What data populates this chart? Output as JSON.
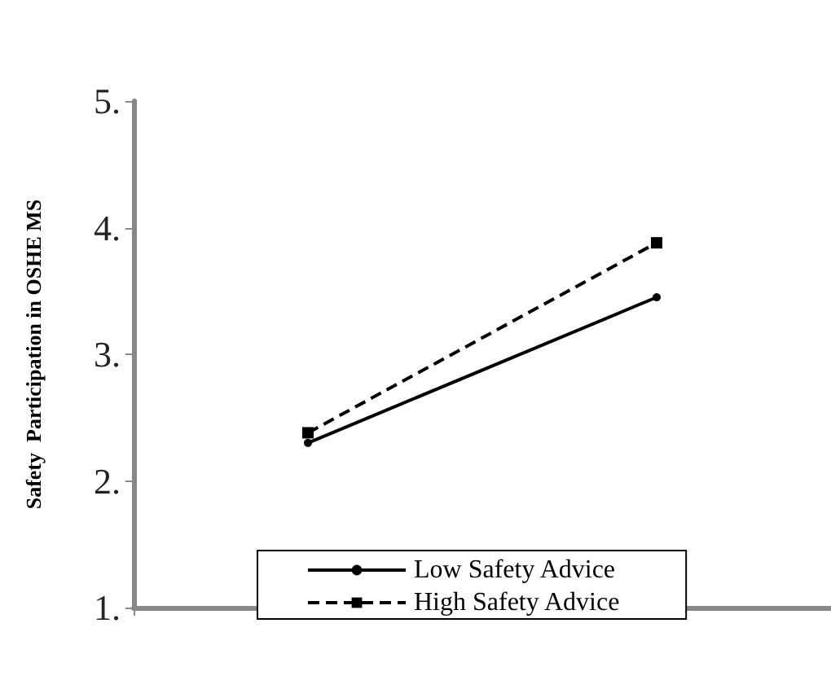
{
  "chart_data": {
    "type": "line",
    "ylabel": "Safety  Participation in OSHE MS",
    "categories": [
      null,
      null
    ],
    "series": [
      {
        "name": "Low Safety Advice",
        "color": "#000000",
        "values": [
          2.3,
          3.45
        ],
        "marker": "circle",
        "line_style": "solid"
      },
      {
        "name": "High Safety Advice",
        "color": "#000000",
        "values": [
          2.38,
          3.88
        ],
        "marker": "square",
        "line_style": "dashed"
      }
    ],
    "ylim": [
      1,
      5
    ],
    "yticks": [
      {
        "value": 1,
        "label": "1."
      },
      {
        "value": 2,
        "label": "2."
      },
      {
        "value": 3,
        "label": "3."
      },
      {
        "value": 4,
        "label": "4."
      },
      {
        "value": 5,
        "label": "5."
      }
    ],
    "grid": false,
    "legend": "bottom"
  }
}
